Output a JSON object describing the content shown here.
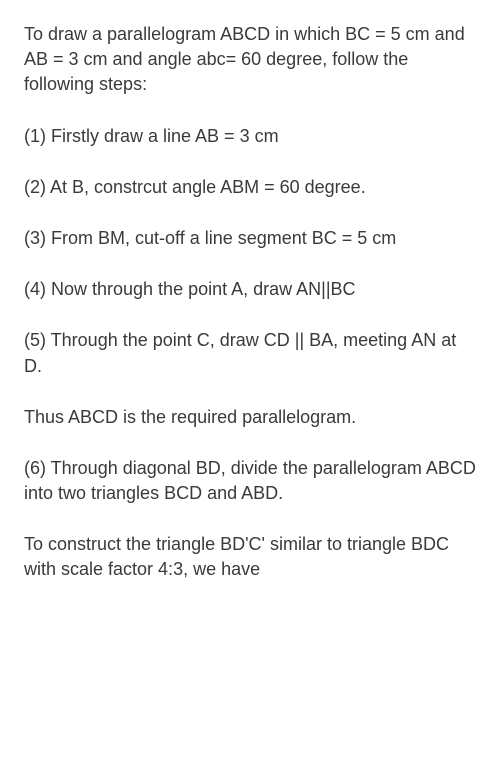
{
  "paragraphs": [
    "To draw a parallelogram ABCD in which BC = 5 cm and AB = 3 cm and angle abc= 60 degree, follow the following steps:",
    "(1) Firstly draw a line AB = 3 cm",
    "(2) At B, constrcut angle ABM = 60 degree.",
    "(3) From BM, cut-off a line segment BC = 5 cm",
    "(4) Now through the point A, draw AN||BC",
    "(5) Through the point C, draw CD || BA, meeting AN at D.",
    "Thus ABCD is the required parallelogram.",
    "(6) Through diagonal BD, divide the parallelogram ABCD into two triangles BCD and ABD.",
    "To construct the triangle BD'C' similar to triangle BDC with scale factor 4:3, we have"
  ],
  "styling": {
    "background_color": "#ffffff",
    "text_color": "#3a3a3a",
    "font_size": 18,
    "line_height": 1.4,
    "paragraph_spacing": 26,
    "padding_horizontal": 24,
    "padding_vertical": 22
  }
}
